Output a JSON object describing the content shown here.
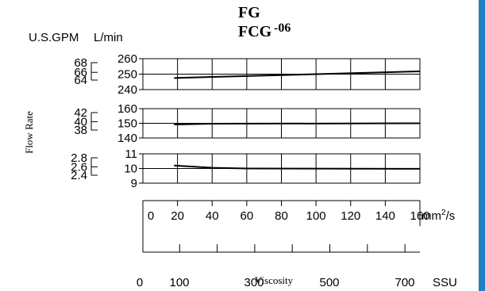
{
  "title": {
    "line1": "FG",
    "line2": "FCG",
    "suffix": "-06"
  },
  "units": {
    "gpm": "U.S.GPM",
    "lmin": "L/min"
  },
  "ylabel": "Flow Rate",
  "xlabel": "Viscosity",
  "x_units": {
    "mm2s_base": "mm",
    "mm2s_sup": "2",
    "mm2s_rest": "/s",
    "ssu": "SSU"
  },
  "colors": {
    "edge_bar": "#1e7fc2",
    "line": "#000000"
  },
  "chart_data": [
    {
      "type": "line",
      "panel": "top",
      "ylim": [
        240,
        260
      ],
      "lmin_ticks": [
        "260",
        "250",
        "240"
      ],
      "gpm_ticks": [
        "68",
        "66",
        "64"
      ],
      "x": [
        18,
        160
      ],
      "y": [
        247.5,
        251.8
      ]
    },
    {
      "type": "line",
      "panel": "middle",
      "ylim": [
        140,
        160
      ],
      "lmin_ticks": [
        "160",
        "150",
        "140"
      ],
      "gpm_ticks": [
        "42",
        "40",
        "38"
      ],
      "x": [
        18,
        40,
        160
      ],
      "y": [
        149.2,
        149.7,
        150.0
      ]
    },
    {
      "type": "line",
      "panel": "bottom",
      "ylim": [
        9,
        11
      ],
      "lmin_ticks": [
        "11",
        "10",
        "9"
      ],
      "gpm_ticks": [
        "2.8",
        "2.6",
        "2.4"
      ],
      "x": [
        18,
        40,
        60,
        160
      ],
      "y": [
        10.2,
        10.05,
        10.0,
        9.98
      ]
    }
  ],
  "x_axis_mm2s": {
    "xlim": [
      0,
      160
    ],
    "ticks": [
      "0",
      "20",
      "40",
      "60",
      "80",
      "100",
      "120",
      "140",
      "160"
    ]
  },
  "x_axis_ssu": {
    "ticks": [
      "0",
      "100",
      "300",
      "500",
      "700"
    ]
  }
}
